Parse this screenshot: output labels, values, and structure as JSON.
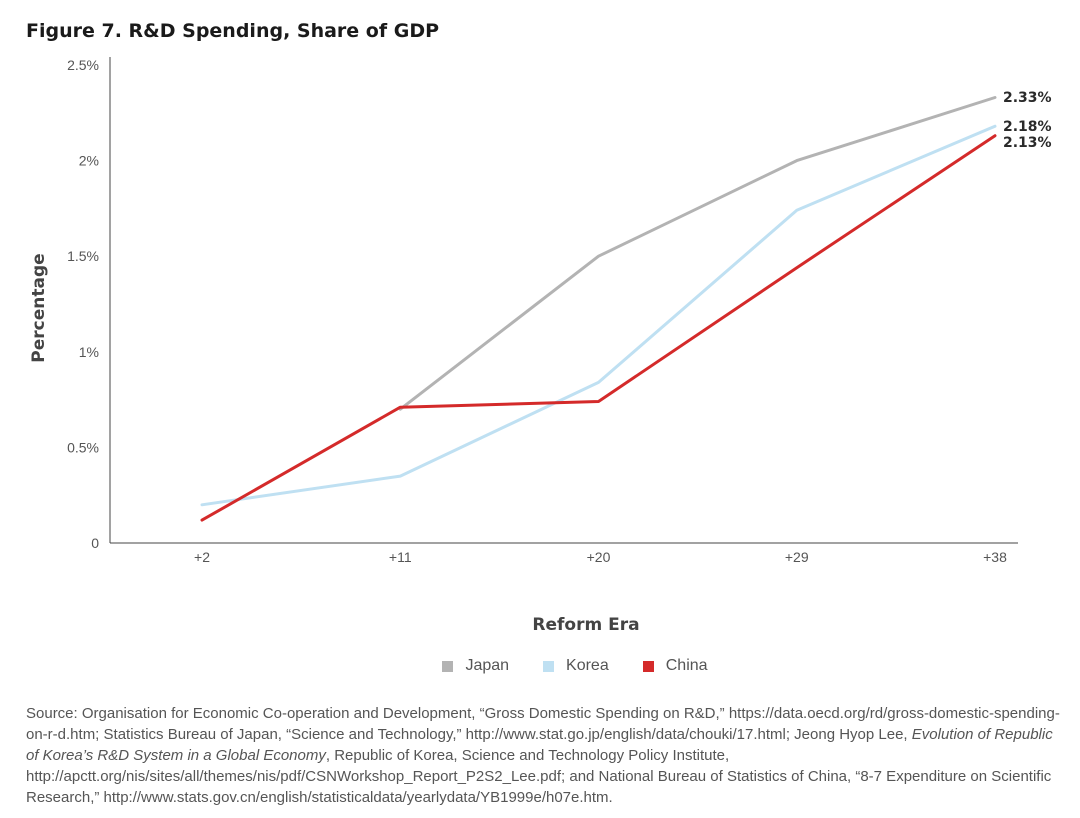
{
  "figure_title": "Figure 7. R&D Spending, Share of GDP",
  "chart_data": {
    "type": "line",
    "title": "Figure 7. R&D Spending, Share of GDP",
    "xlabel": "Reform Era",
    "ylabel": "Percentage",
    "categories": [
      "+2",
      "+11",
      "+20",
      "+29",
      "+38"
    ],
    "ylim": [
      0,
      2.5
    ],
    "yticks": [
      0,
      0.5,
      1,
      1.5,
      2,
      2.5
    ],
    "ytick_labels": [
      "0",
      "0.5%",
      "1%",
      "1.5%",
      "2%",
      "2.5%"
    ],
    "grid": false,
    "legend_position": "bottom",
    "series": [
      {
        "name": "Japan",
        "color": "#b3b3b3",
        "values": [
          null,
          0.7,
          1.5,
          2.0,
          2.33
        ],
        "end_label": "2.33%"
      },
      {
        "name": "Korea",
        "color": "#bfe0f2",
        "values": [
          0.2,
          0.35,
          0.84,
          1.74,
          2.18
        ],
        "end_label": "2.18%"
      },
      {
        "name": "China",
        "color": "#d42a2a",
        "values": [
          0.12,
          0.71,
          0.74,
          1.44,
          2.13
        ],
        "end_label": "2.13%"
      }
    ]
  },
  "source": {
    "prefix": "Source: Organisation for Economic Co-operation and Development, “Gross Domestic Spending on R&D,” https://data.oecd.org/rd/gross-domestic-spending-on-r-d.htm; Statistics Bureau of Japan, “Science and Technology,” http://www.stat.go.jp/english/data/chouki/17.html; Jeong Hyop Lee, ",
    "italic": "Evolution of Republic of Korea’s R&D System in a Global Economy",
    "suffix": ", Republic of Korea, Science and Technology Policy Institute, http://apctt.org/nis/sites/all/themes/nis/pdf/CSNWorkshop_Report_P2S2_Lee.pdf; and National Bureau of Statistics of China, “8-7 Expenditure on Scientific Research,” http://www.stats.gov.cn/english/statisticaldata/yearlydata/YB1999e/h07e.htm."
  }
}
